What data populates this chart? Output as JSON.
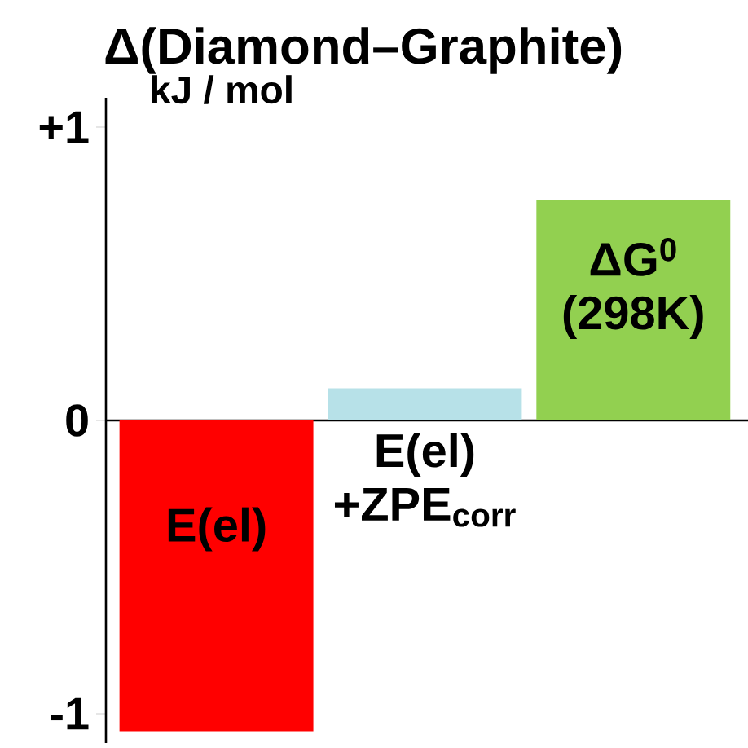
{
  "chart_data": {
    "type": "bar",
    "title": "Δ(Diamond–Graphite)",
    "ylabel": "kJ / mol",
    "categories": [
      "E(el)",
      "E(el) +ZPE$_{corr}$",
      "ΔG$^{0}$ (298K)"
    ],
    "values": [
      -1.06,
      0.11,
      0.75
    ],
    "colors": [
      "#ff0000",
      "#b7e1e8",
      "#92d050"
    ],
    "ylim": [
      -1.1,
      1.1
    ],
    "yticks": [
      {
        "value": 1,
        "label": "+1"
      },
      0,
      -1
    ],
    "tick_labels": "y"
  }
}
